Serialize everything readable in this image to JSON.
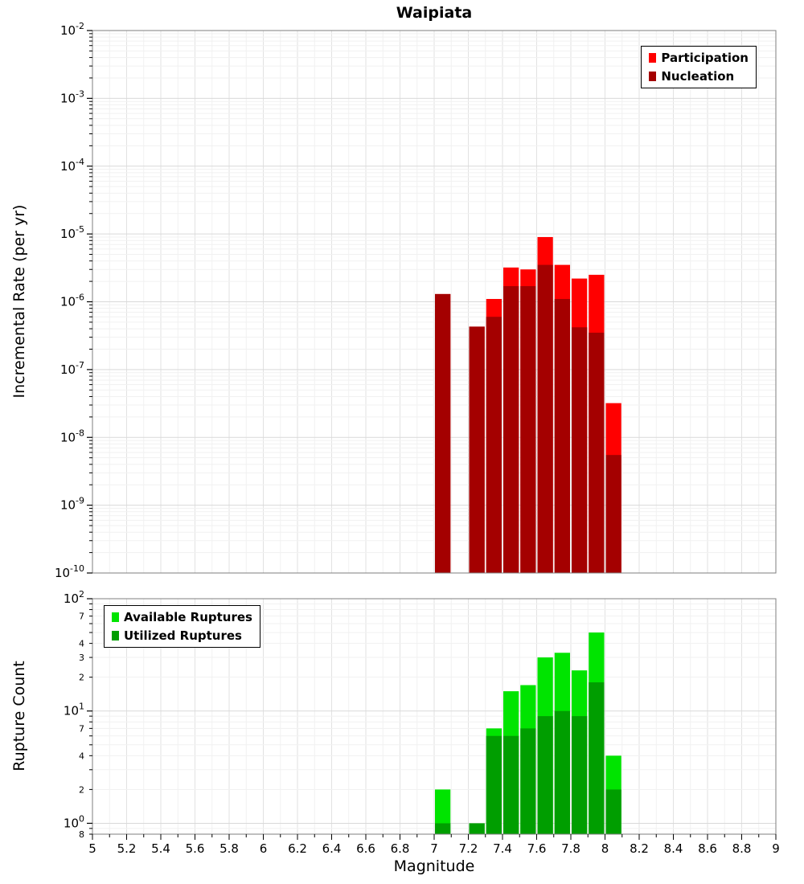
{
  "title": "Waipiata",
  "chart_data": [
    {
      "type": "bar",
      "panel": "incremental-rate",
      "title": "Waipiata",
      "ylabel": "Incremental Rate (per yr)",
      "xlabel": "Magnitude",
      "xlim": [
        5,
        9
      ],
      "ylim": [
        1e-10,
        0.01
      ],
      "grid": true,
      "legend_position": "top-right",
      "x_bin_width": 0.1,
      "y_major_exponents": [
        -2,
        -3,
        -4,
        -5,
        -6,
        -7,
        -8,
        -9,
        -10
      ],
      "x": [
        7.0,
        7.2,
        7.3,
        7.4,
        7.5,
        7.6,
        7.7,
        7.8,
        7.9,
        8.0
      ],
      "series": [
        {
          "name": "Participation",
          "color": "#ff0000",
          "values": [
            1.3e-06,
            4.3e-07,
            1.1e-06,
            3.2e-06,
            3e-06,
            9e-06,
            3.5e-06,
            2.2e-06,
            2.5e-06,
            3.2e-08
          ]
        },
        {
          "name": "Nucleation",
          "color": "#a40000",
          "values": [
            1.3e-06,
            4.3e-07,
            6e-07,
            1.7e-06,
            1.7e-06,
            3.5e-06,
            1.1e-06,
            4.2e-07,
            3.5e-07,
            5.5e-09
          ]
        }
      ]
    },
    {
      "type": "bar",
      "panel": "rupture-count",
      "ylabel": "Rupture Count",
      "xlabel": "Magnitude",
      "xlim": [
        5,
        9
      ],
      "ylim": [
        0.8,
        100
      ],
      "grid": true,
      "legend_position": "top-left",
      "x_bin_width": 0.1,
      "y_major_exponents": [
        2,
        1,
        0
      ],
      "y_minor_labeled": [
        {
          "v": 70,
          "t": "7"
        },
        {
          "v": 40,
          "t": "4"
        },
        {
          "v": 30,
          "t": "3"
        },
        {
          "v": 20,
          "t": "2"
        },
        {
          "v": 7,
          "t": "7"
        },
        {
          "v": 4,
          "t": "4"
        },
        {
          "v": 2,
          "t": "2"
        },
        {
          "v": 0.8,
          "t": "8"
        }
      ],
      "x_ticks": [
        {
          "v": 5,
          "t": "5"
        },
        {
          "v": 5.2,
          "t": "5.2"
        },
        {
          "v": 5.4,
          "t": "5.4"
        },
        {
          "v": 5.6,
          "t": "5.6"
        },
        {
          "v": 5.8,
          "t": "5.8"
        },
        {
          "v": 6,
          "t": "6"
        },
        {
          "v": 6.2,
          "t": "6.2"
        },
        {
          "v": 6.4,
          "t": "6.4"
        },
        {
          "v": 6.6,
          "t": "6.6"
        },
        {
          "v": 6.8,
          "t": "6.8"
        },
        {
          "v": 7,
          "t": "7"
        },
        {
          "v": 7.2,
          "t": "7.2"
        },
        {
          "v": 7.4,
          "t": "7.4"
        },
        {
          "v": 7.6,
          "t": "7.6"
        },
        {
          "v": 7.8,
          "t": "7.8"
        },
        {
          "v": 8,
          "t": "8"
        },
        {
          "v": 8.2,
          "t": "8.2"
        },
        {
          "v": 8.4,
          "t": "8.4"
        },
        {
          "v": 8.6,
          "t": "8.6"
        },
        {
          "v": 8.8,
          "t": "8.8"
        },
        {
          "v": 9,
          "t": "9"
        }
      ],
      "x": [
        7.0,
        7.2,
        7.3,
        7.4,
        7.5,
        7.6,
        7.7,
        7.8,
        7.9,
        8.0
      ],
      "series": [
        {
          "name": "Available Ruptures",
          "color": "#00e400",
          "values": [
            2,
            1,
            7,
            15,
            17,
            30,
            33,
            23,
            50,
            4
          ]
        },
        {
          "name": "Utilized Ruptures",
          "color": "#009e00",
          "values": [
            1,
            1,
            6,
            6,
            7,
            9,
            10,
            9,
            18,
            2
          ]
        }
      ]
    }
  ]
}
